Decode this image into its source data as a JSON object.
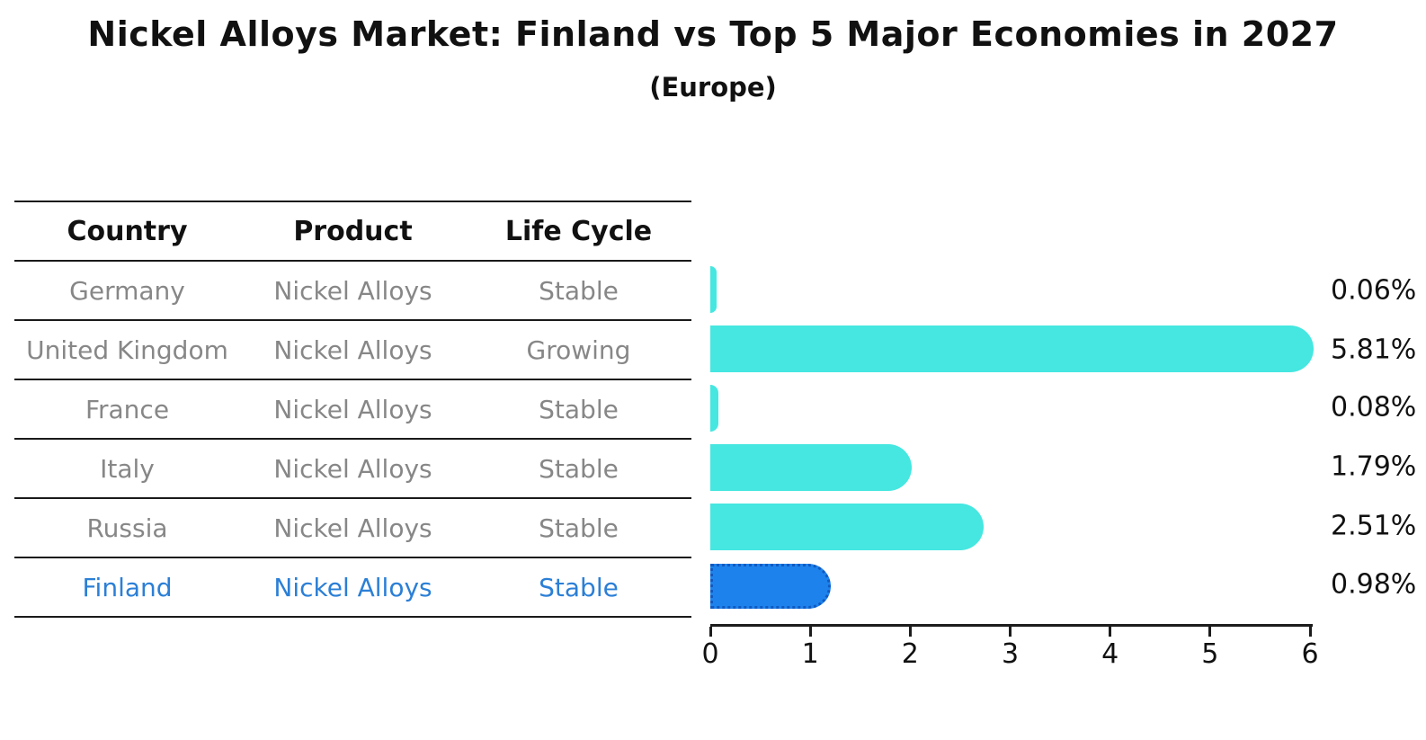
{
  "title": "Nickel Alloys Market: Finland vs Top 5 Major Economies in 2027",
  "subtitle": "(Europe)",
  "table": {
    "headers": [
      "Country",
      "Product",
      "Life Cycle"
    ],
    "rows": [
      {
        "country": "Germany",
        "product": "Nickel Alloys",
        "life_cycle": "Stable",
        "highlight": false
      },
      {
        "country": "United Kingdom",
        "product": "Nickel Alloys",
        "life_cycle": "Growing",
        "highlight": false
      },
      {
        "country": "France",
        "product": "Nickel Alloys",
        "life_cycle": "Stable",
        "highlight": false
      },
      {
        "country": "Italy",
        "product": "Nickel Alloys",
        "life_cycle": "Stable",
        "highlight": false
      },
      {
        "country": "Russia",
        "product": "Nickel Alloys",
        "life_cycle": "Stable",
        "highlight": false
      },
      {
        "country": "Finland",
        "product": "Nickel Alloys",
        "life_cycle": "Stable",
        "highlight": true
      }
    ]
  },
  "chart_data": {
    "type": "bar",
    "orientation": "horizontal",
    "title": "Nickel Alloys Market: Finland vs Top 5 Major Economies in 2027",
    "subtitle": "(Europe)",
    "categories": [
      "Germany",
      "United Kingdom",
      "France",
      "Italy",
      "Russia",
      "Finland"
    ],
    "values": [
      0.06,
      5.81,
      0.08,
      1.79,
      2.51,
      0.98
    ],
    "labels": [
      "0.06%",
      "5.81%",
      "0.08%",
      "1.79%",
      "2.51%",
      "0.98%"
    ],
    "xlim": [
      0,
      6
    ],
    "x_ticks": [
      "0",
      "1",
      "2",
      "3",
      "4",
      "5",
      "6"
    ],
    "grid": false,
    "legend": "none",
    "highlight_index": 5,
    "bar_color": "#45e7e0",
    "highlight_color": "#1e82ec",
    "highlight_border_color": "#0f5ac2",
    "highlight_text_color": "#2b7fd6",
    "body_text_color": "#878787",
    "label_color": "#111111"
  }
}
